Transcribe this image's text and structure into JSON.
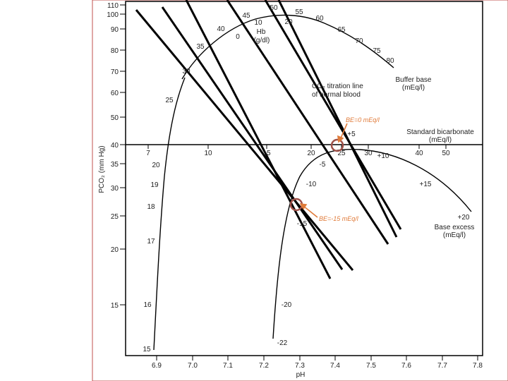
{
  "axes": {
    "y_axis_title": "PCO₂ (mm Hg)",
    "x_axis_title": "pH",
    "y_ticks": [
      "110",
      "100",
      "90",
      "80",
      "70",
      "60",
      "50",
      "40",
      "35",
      "30",
      "25",
      "20",
      "15"
    ],
    "x_ticks": [
      "6.9",
      "7.0",
      "7.1",
      "7.2",
      "7.3",
      "7.4",
      "7.5",
      "7.6",
      "7.7",
      "7.8"
    ]
  },
  "labels": {
    "hb_title": "Hb",
    "hb_unit": "(g/dl)",
    "hb_values": [
      "0",
      "10",
      "20"
    ],
    "co2_line_1": "CO₂ titration line",
    "co2_line_2": "of normal blood",
    "buffer_base_title": "Buffer base",
    "buffer_base_unit": "(mEq/l)",
    "buffer_base_values": [
      "25",
      "30",
      "35",
      "40",
      "45",
      "50",
      "55",
      "60",
      "65",
      "70",
      "75",
      "80"
    ],
    "std_bicarb_title": "Standard bicarbonate",
    "std_bicarb_unit": "(mEq/l)",
    "std_bicarb_values": [
      "7",
      "10",
      "15",
      "20",
      "25",
      "30",
      "40",
      "50",
      "20",
      "19",
      "18",
      "17",
      "16",
      "15"
    ],
    "base_excess_title": "Base excess",
    "base_excess_unit": "(mEq/l)",
    "base_excess_values": [
      "+5",
      "-5",
      "-10",
      "-15",
      "-20",
      "-22",
      "+10",
      "+15",
      "+20"
    ]
  },
  "annotations": {
    "be_zero": "BE=0 mEq/l",
    "be_minus15": "BE=-15 mEq/l",
    "annotation_color": "#e07b3a",
    "marker_color": "#a0524a"
  },
  "colors": {
    "border": "#c0504d",
    "ink": "#000000"
  }
}
